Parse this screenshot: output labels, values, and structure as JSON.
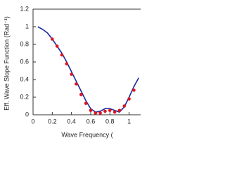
{
  "chart_data": {
    "type": "line",
    "x_label": "Wave Frequency (",
    "y_label": "Eff. Wave Slope Function (Rad⁻¹)",
    "xlim": [
      0,
      1.12
    ],
    "ylim": [
      0,
      1.2
    ],
    "xticks": [
      0,
      0.2,
      0.4,
      0.6,
      0.8,
      1
    ],
    "yticks": [
      0,
      0.2,
      0.4,
      0.6,
      0.8,
      1,
      1.2
    ],
    "series": [
      {
        "mode": "line",
        "color": "#1a2a9c",
        "x": [
          0.05,
          0.1,
          0.15,
          0.2,
          0.25,
          0.3,
          0.35,
          0.4,
          0.45,
          0.5,
          0.55,
          0.6,
          0.65,
          0.7,
          0.75,
          0.8,
          0.85,
          0.9,
          0.95,
          1.0,
          1.05,
          1.1
        ],
        "values": [
          1.0,
          0.97,
          0.93,
          0.86,
          0.78,
          0.7,
          0.6,
          0.49,
          0.38,
          0.27,
          0.16,
          0.07,
          0.03,
          0.04,
          0.07,
          0.07,
          0.05,
          0.03,
          0.09,
          0.2,
          0.32,
          0.42
        ]
      },
      {
        "mode": "markers",
        "color": "#e0141e",
        "x": [
          0.2,
          0.25,
          0.3,
          0.35,
          0.4,
          0.45,
          0.5,
          0.55,
          0.6,
          0.65,
          0.7,
          0.75,
          0.8,
          0.85,
          0.9,
          0.95,
          1.0,
          1.05
        ],
        "values": [
          0.86,
          0.78,
          0.68,
          0.58,
          0.46,
          0.35,
          0.23,
          0.13,
          0.05,
          0.02,
          0.02,
          0.04,
          0.05,
          0.03,
          0.05,
          0.1,
          0.18,
          0.28
        ]
      }
    ]
  }
}
